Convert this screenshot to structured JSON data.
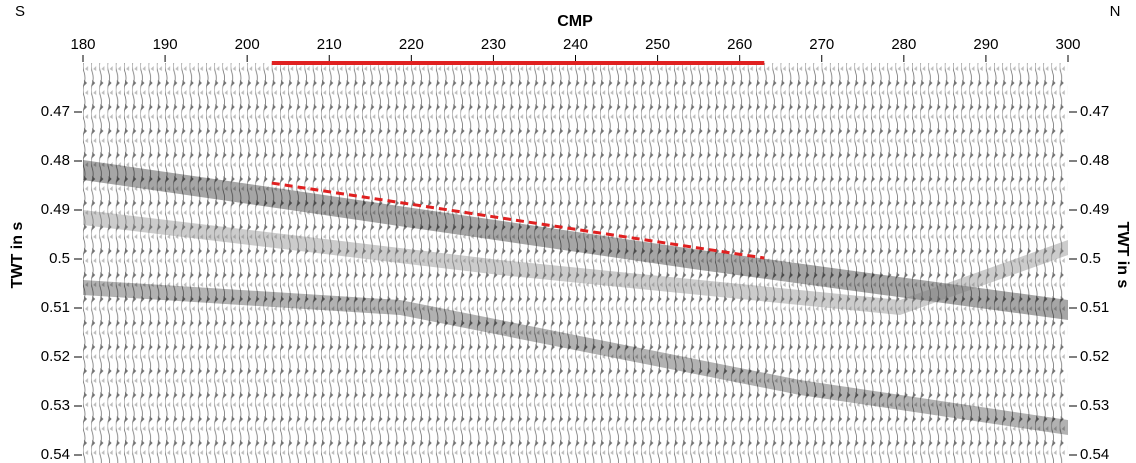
{
  "chart_data": {
    "type": "line",
    "x_label": "CMP",
    "y_label": "TWT in s",
    "y2_label": "TWT in s",
    "left_label": "S",
    "right_label": "N",
    "xlim": [
      180,
      300
    ],
    "xticks": [
      180,
      190,
      200,
      210,
      220,
      230,
      240,
      250,
      260,
      270,
      280,
      290,
      300
    ],
    "ylim": [
      0.54,
      0.46
    ],
    "yticks": [
      0.47,
      0.48,
      0.49,
      0.5,
      0.51,
      0.52,
      0.53,
      0.54
    ],
    "y2lim": [
      0.54,
      0.46
    ],
    "y2ticks": [
      0.47,
      0.48,
      0.49,
      0.5,
      0.51,
      0.52,
      0.53,
      0.54
    ],
    "series": [
      {
        "color": "#e02020",
        "style": "solid",
        "x": [
          203,
          263
        ],
        "values": [
          0.46,
          0.46
        ]
      },
      {
        "color": "#e02020",
        "style": "dashed",
        "x": [
          203,
          263
        ],
        "values": [
          0.4845,
          0.4998
        ]
      }
    ]
  }
}
